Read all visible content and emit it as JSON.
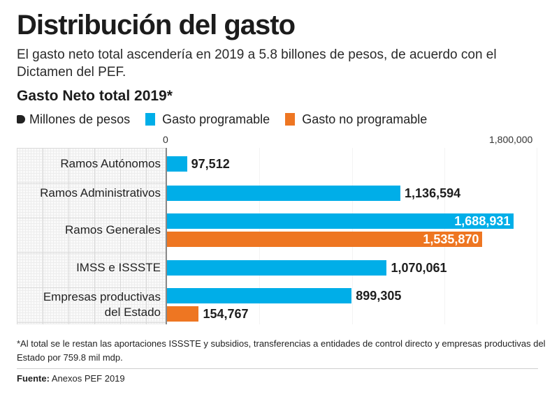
{
  "title": "Distribución del gasto",
  "subtitle": "El gasto neto total ascendería en 2019 a 5.8 billones de pesos, de acuerdo con el Dictamen del PEF.",
  "chart_data": {
    "type": "bar",
    "orientation": "horizontal",
    "title": "Gasto Neto total 2019*",
    "units": "Millones de pesos",
    "xlim": [
      0,
      1800000
    ],
    "tick_labels": [
      "0",
      "1,800,000"
    ],
    "legend": {
      "placement": "top",
      "entries": [
        {
          "name": "Gasto programable",
          "color": "#00aee8"
        },
        {
          "name": "Gasto no programable",
          "color": "#ee7622"
        }
      ]
    },
    "categories": [
      {
        "label": "Ramos Autónomos",
        "label_lines": [
          "Ramos Autónomos"
        ]
      },
      {
        "label": "Ramos Administrativos",
        "label_lines": [
          "Ramos Administrativos"
        ]
      },
      {
        "label": "Ramos Generales",
        "label_lines": [
          "Ramos Generales"
        ]
      },
      {
        "label": "IMSS e ISSSTE",
        "label_lines": [
          "IMSS e ISSSTE"
        ]
      },
      {
        "label": "Empresas productivas del Estado",
        "label_lines": [
          "Empresas productivas",
          "del Estado"
        ]
      }
    ],
    "series": [
      {
        "name": "Gasto programable",
        "color": "#00aee8",
        "values": [
          97512,
          1136594,
          1688931,
          1070061,
          899305
        ],
        "labels": [
          "97,512",
          "1,136,594",
          "1,688,931",
          "1,070,061",
          "899,305"
        ]
      },
      {
        "name": "Gasto no programable",
        "color": "#ee7622",
        "values": [
          null,
          null,
          1535870,
          null,
          154767
        ],
        "labels": [
          null,
          null,
          "1,535,870",
          null,
          "154,767"
        ]
      }
    ]
  },
  "footnote": "*Al total se le restan las aportaciones ISSSTE y subsidios, transferencias a entidades de control directo y empresas productivas del Estado por 759.8 mil mdp.",
  "source": {
    "label": "Fuente:",
    "text": "Anexos PEF 2019"
  }
}
